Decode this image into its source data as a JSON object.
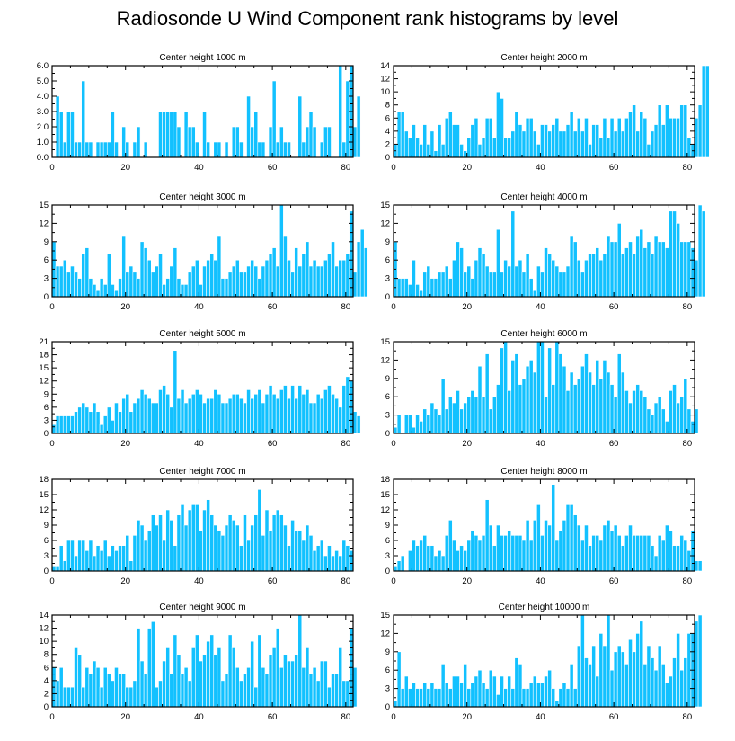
{
  "page": {
    "title": "Radiosonde U Wind Component rank histograms by level"
  },
  "colors": {
    "bar": "#12c1ff",
    "bar_edge": "#ffffff",
    "axis": "#000000"
  },
  "chart_data": [
    {
      "type": "bar",
      "title": "Center height 1000 m",
      "xlabel": "",
      "ylabel": "",
      "xlim": [
        0,
        82
      ],
      "ylim": [
        0,
        6
      ],
      "xticks": [
        "0",
        "20",
        "40",
        "60",
        "80"
      ],
      "yticks": [
        "0.0",
        "1.0",
        "2.0",
        "3.0",
        "4.0",
        "5.0",
        "6.0"
      ],
      "values": [
        0,
        4,
        3,
        1,
        3,
        3,
        1,
        1,
        5,
        1,
        1,
        0,
        1,
        1,
        1,
        1,
        3,
        1,
        0,
        2,
        1,
        0,
        1,
        2,
        0,
        1,
        0,
        0,
        0,
        3,
        3,
        3,
        3,
        3,
        2,
        0,
        3,
        2,
        2,
        1,
        0,
        3,
        1,
        0,
        1,
        1,
        0,
        1,
        0,
        2,
        2,
        1,
        0,
        4,
        2,
        3,
        1,
        1,
        0,
        2,
        5,
        1,
        2,
        1,
        1,
        0,
        0,
        4,
        1,
        2,
        3,
        2,
        0,
        1,
        2,
        2,
        0,
        0,
        6,
        1,
        5,
        6,
        2,
        4
      ]
    },
    {
      "type": "bar",
      "title": "Center height 2000 m",
      "xlabel": "",
      "ylabel": "",
      "xlim": [
        0,
        82
      ],
      "ylim": [
        0,
        14
      ],
      "xticks": [
        "0",
        "20",
        "40",
        "60",
        "80"
      ],
      "yticks": [
        "0",
        "2",
        "4",
        "6",
        "8",
        "10",
        "12",
        "14"
      ],
      "values": [
        2,
        7,
        7,
        4,
        3,
        5,
        3,
        2,
        5,
        2,
        4,
        1,
        5,
        2,
        6,
        7,
        5,
        5,
        2,
        1,
        3,
        5,
        6,
        2,
        3,
        6,
        6,
        3,
        10,
        9,
        3,
        3,
        4,
        7,
        5,
        4,
        6,
        6,
        4,
        2,
        5,
        5,
        4,
        5,
        6,
        4,
        4,
        5,
        7,
        4,
        6,
        4,
        6,
        2,
        5,
        5,
        3,
        6,
        3,
        6,
        4,
        6,
        4,
        6,
        7,
        8,
        4,
        7,
        6,
        2,
        4,
        5,
        8,
        5,
        8,
        6,
        6,
        6,
        8,
        8,
        3,
        2,
        6,
        8,
        14,
        14
      ]
    },
    {
      "type": "bar",
      "title": "Center height 3000 m",
      "xlabel": "",
      "ylabel": "",
      "xlim": [
        0,
        82
      ],
      "ylim": [
        0,
        15
      ],
      "xticks": [
        "0",
        "20",
        "40",
        "60",
        "80"
      ],
      "yticks": [
        "0",
        "3",
        "6",
        "9",
        "12",
        "15"
      ],
      "values": [
        9,
        5,
        5,
        6,
        4,
        5,
        4,
        3,
        7,
        8,
        3,
        2,
        1,
        3,
        2,
        7,
        2,
        1,
        3,
        10,
        4,
        5,
        4,
        3,
        9,
        8,
        6,
        4,
        5,
        7,
        2,
        3,
        5,
        8,
        3,
        2,
        2,
        4,
        5,
        6,
        2,
        5,
        6,
        7,
        6,
        10,
        3,
        3,
        4,
        5,
        6,
        4,
        4,
        5,
        6,
        5,
        3,
        5,
        6,
        7,
        8,
        5,
        15,
        10,
        6,
        4,
        8,
        5,
        7,
        9,
        5,
        6,
        5,
        5,
        6,
        7,
        9,
        5,
        6,
        6,
        7,
        14,
        4,
        9,
        11,
        8
      ]
    },
    {
      "type": "bar",
      "title": "Center height 4000 m",
      "xlabel": "",
      "ylabel": "",
      "xlim": [
        0,
        82
      ],
      "ylim": [
        0,
        15
      ],
      "xticks": [
        "0",
        "20",
        "40",
        "60",
        "80"
      ],
      "yticks": [
        "0",
        "3",
        "6",
        "9",
        "12",
        "15"
      ],
      "values": [
        9,
        3,
        3,
        3,
        2,
        6,
        2,
        1,
        4,
        5,
        3,
        3,
        4,
        4,
        5,
        3,
        6,
        9,
        8,
        4,
        5,
        3,
        6,
        8,
        7,
        5,
        4,
        4,
        11,
        4,
        6,
        5,
        14,
        5,
        6,
        4,
        7,
        3,
        1,
        5,
        4,
        8,
        7,
        6,
        5,
        4,
        4,
        5,
        10,
        9,
        6,
        4,
        6,
        7,
        7,
        8,
        6,
        7,
        10,
        9,
        9,
        12,
        7,
        8,
        9,
        7,
        10,
        11,
        8,
        9,
        7,
        10,
        9,
        9,
        8,
        14,
        14,
        12,
        9,
        9,
        9,
        8,
        6,
        15,
        14
      ]
    },
    {
      "type": "bar",
      "title": "Center height 5000 m",
      "xlabel": "",
      "ylabel": "",
      "xlim": [
        0,
        82
      ],
      "ylim": [
        0,
        21
      ],
      "xticks": [
        "0",
        "20",
        "40",
        "60",
        "80"
      ],
      "yticks": [
        "0",
        "3",
        "6",
        "9",
        "12",
        "15",
        "18",
        "21"
      ],
      "values": [
        2,
        4,
        4,
        4,
        4,
        4,
        5,
        6,
        7,
        6,
        5,
        7,
        5,
        2,
        4,
        6,
        3,
        7,
        5,
        8,
        9,
        5,
        7,
        8,
        10,
        9,
        8,
        7,
        7,
        10,
        11,
        9,
        6,
        19,
        8,
        10,
        7,
        8,
        9,
        10,
        9,
        7,
        8,
        8,
        10,
        9,
        7,
        7,
        8,
        9,
        9,
        8,
        7,
        10,
        8,
        9,
        10,
        7,
        9,
        11,
        9,
        8,
        10,
        11,
        8,
        11,
        8,
        11,
        9,
        10,
        7,
        7,
        9,
        8,
        10,
        11,
        9,
        8,
        6,
        11,
        13,
        12,
        5,
        4
      ]
    },
    {
      "type": "bar",
      "title": "Center height 6000 m",
      "xlabel": "",
      "ylabel": "",
      "xlim": [
        0,
        82
      ],
      "ylim": [
        0,
        15
      ],
      "xticks": [
        "0",
        "20",
        "40",
        "60",
        "80"
      ],
      "yticks": [
        "0",
        "3",
        "6",
        "9",
        "12",
        "15"
      ],
      "values": [
        1,
        3,
        0,
        3,
        3,
        1,
        3,
        2,
        4,
        3,
        5,
        4,
        3,
        9,
        4,
        6,
        5,
        7,
        4,
        5,
        6,
        7,
        6,
        11,
        6,
        13,
        4,
        6,
        8,
        14,
        15,
        7,
        12,
        13,
        8,
        9,
        11,
        12,
        10,
        15,
        15,
        6,
        14,
        8,
        15,
        13,
        11,
        7,
        10,
        8,
        9,
        11,
        13,
        10,
        8,
        12,
        9,
        12,
        10,
        8,
        6,
        13,
        10,
        7,
        5,
        7,
        8,
        7,
        6,
        4,
        3,
        5,
        6,
        4,
        2,
        7,
        8,
        5,
        6,
        9,
        4,
        2,
        4
      ]
    },
    {
      "type": "bar",
      "title": "Center height 7000 m",
      "xlabel": "",
      "ylabel": "",
      "xlim": [
        0,
        82
      ],
      "ylim": [
        0,
        18
      ],
      "xticks": [
        "0",
        "20",
        "40",
        "60",
        "80"
      ],
      "yticks": [
        "0",
        "3",
        "6",
        "9",
        "12",
        "15",
        "18"
      ],
      "values": [
        1,
        1,
        5,
        2,
        6,
        6,
        3,
        6,
        6,
        4,
        6,
        3,
        5,
        4,
        6,
        3,
        5,
        4,
        5,
        5,
        7,
        2,
        7,
        10,
        9,
        6,
        8,
        11,
        9,
        11,
        6,
        12,
        10,
        5,
        11,
        13,
        9,
        12,
        13,
        13,
        8,
        12,
        14,
        11,
        9,
        8,
        7,
        9,
        11,
        10,
        9,
        5,
        11,
        6,
        9,
        11,
        16,
        7,
        12,
        8,
        11,
        12,
        11,
        9,
        5,
        10,
        8,
        8,
        6,
        9,
        7,
        4,
        5,
        6,
        3,
        5,
        3,
        4,
        3,
        6,
        5,
        4
      ]
    },
    {
      "type": "bar",
      "title": "Center height 8000 m",
      "xlabel": "",
      "ylabel": "",
      "xlim": [
        0,
        82
      ],
      "ylim": [
        0,
        18
      ],
      "xticks": [
        "0",
        "20",
        "40",
        "60",
        "80"
      ],
      "yticks": [
        "0",
        "3",
        "6",
        "9",
        "12",
        "15",
        "18"
      ],
      "values": [
        1,
        2,
        3,
        0,
        4,
        6,
        5,
        6,
        7,
        5,
        5,
        3,
        4,
        3,
        7,
        10,
        6,
        4,
        5,
        4,
        6,
        8,
        7,
        6,
        7,
        14,
        9,
        5,
        9,
        7,
        7,
        8,
        7,
        7,
        7,
        6,
        10,
        6,
        10,
        13,
        7,
        10,
        9,
        17,
        6,
        8,
        10,
        13,
        13,
        11,
        9,
        6,
        9,
        5,
        7,
        7,
        6,
        9,
        10,
        8,
        9,
        7,
        5,
        7,
        9,
        7,
        7,
        7,
        7,
        7,
        5,
        3,
        7,
        6,
        9,
        8,
        5,
        5,
        7,
        6,
        4,
        8,
        2,
        2
      ]
    },
    {
      "type": "bar",
      "title": "Center height 9000 m",
      "xlabel": "",
      "ylabel": "",
      "xlim": [
        0,
        82
      ],
      "ylim": [
        0,
        14
      ],
      "xticks": [
        "0",
        "20",
        "40",
        "60",
        "80"
      ],
      "yticks": [
        "0",
        "2",
        "4",
        "6",
        "8",
        "10",
        "12",
        "14"
      ],
      "values": [
        6,
        4,
        6,
        3,
        3,
        3,
        9,
        8,
        3,
        6,
        5,
        7,
        6,
        3,
        6,
        5,
        4,
        6,
        5,
        5,
        3,
        3,
        4,
        12,
        7,
        5,
        12,
        13,
        3,
        4,
        7,
        9,
        5,
        11,
        8,
        5,
        6,
        4,
        9,
        11,
        7,
        8,
        10,
        11,
        8,
        9,
        4,
        5,
        11,
        9,
        6,
        4,
        5,
        6,
        10,
        3,
        11,
        6,
        5,
        8,
        9,
        12,
        6,
        8,
        7,
        7,
        8,
        14,
        6,
        9,
        5,
        6,
        4,
        7,
        7,
        3,
        5,
        5,
        9,
        4,
        4,
        12,
        6
      ]
    },
    {
      "type": "bar",
      "title": "Center height 10000 m",
      "xlabel": "",
      "ylabel": "",
      "xlim": [
        0,
        82
      ],
      "ylim": [
        0,
        15
      ],
      "xticks": [
        "0",
        "20",
        "40",
        "60",
        "80"
      ],
      "yticks": [
        "0",
        "3",
        "6",
        "9",
        "12",
        "15"
      ],
      "values": [
        1,
        9,
        3,
        5,
        3,
        4,
        3,
        3,
        4,
        3,
        4,
        3,
        3,
        7,
        4,
        3,
        5,
        5,
        4,
        7,
        3,
        4,
        5,
        6,
        4,
        3,
        6,
        5,
        2,
        5,
        3,
        5,
        3,
        8,
        7,
        3,
        3,
        4,
        5,
        4,
        4,
        5,
        6,
        3,
        1,
        3,
        4,
        3,
        7,
        3,
        10,
        15,
        8,
        7,
        10,
        5,
        12,
        10,
        15,
        6,
        9,
        10,
        9,
        7,
        11,
        9,
        12,
        14,
        7,
        10,
        8,
        6,
        10,
        7,
        4,
        5,
        8,
        12,
        6,
        8,
        12,
        12,
        14,
        15
      ]
    }
  ]
}
